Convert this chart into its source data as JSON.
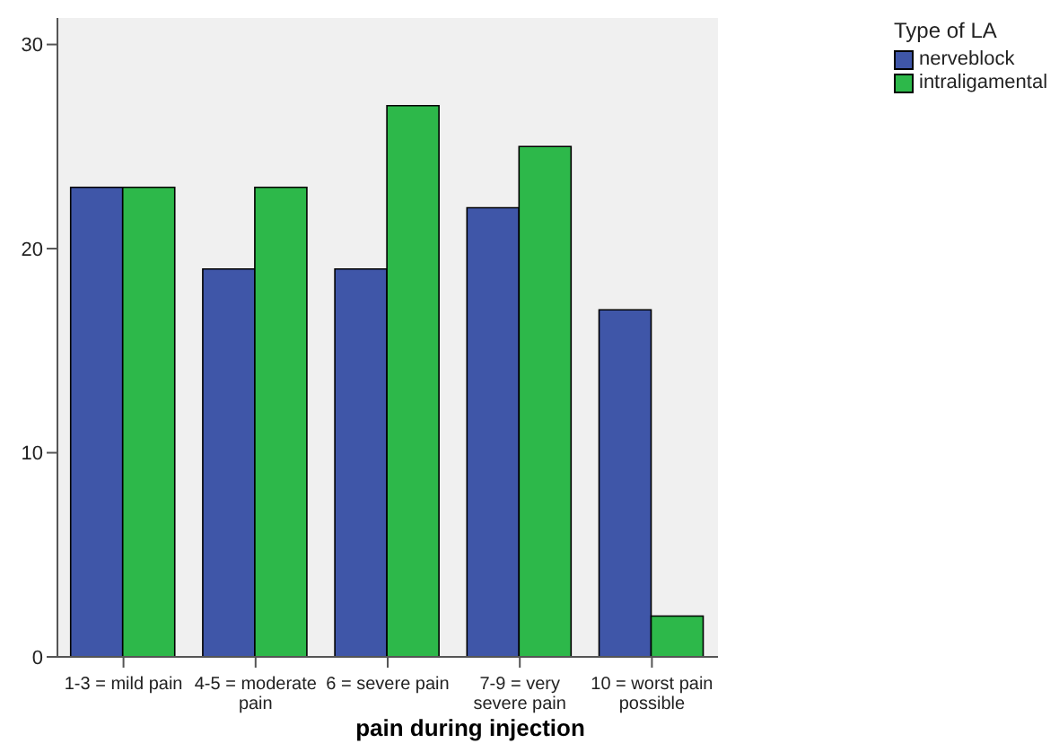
{
  "chart_data": {
    "type": "bar",
    "xlabel": "pain during injection",
    "legend_title": "Type of LA",
    "categories": [
      "1-3 = mild pain",
      "4-5 = moderate pain",
      "6 = severe pain",
      "7-9 = very severe pain",
      "10 = worst pain possible"
    ],
    "series": [
      {
        "name": "nerveblock",
        "color": "#3f56a8",
        "values": [
          23,
          19,
          19,
          22,
          17
        ]
      },
      {
        "name": "intraligamental",
        "color": "#2db84a",
        "values": [
          23,
          23,
          27,
          25,
          2
        ]
      }
    ],
    "ylim": [
      0,
      31.3
    ],
    "yticks": [
      0,
      10,
      20,
      30
    ],
    "grid": false,
    "legend": "top right"
  }
}
